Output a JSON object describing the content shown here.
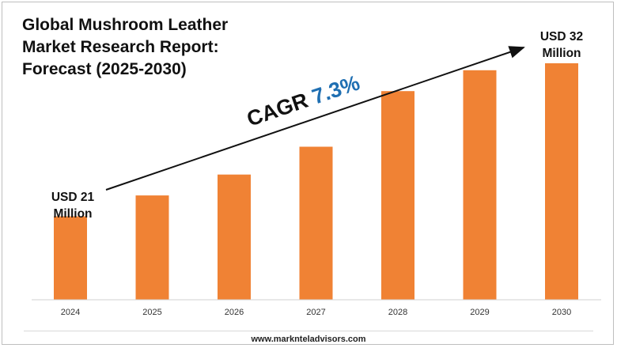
{
  "title": [
    "Global Mushroom Leather",
    "Market Research Report:",
    "Forecast (2025-2030)"
  ],
  "start_label": [
    "USD 21",
    "Million"
  ],
  "end_label": [
    "USD 32",
    "Million"
  ],
  "cagr": {
    "prefix": "CAGR ",
    "value": "7.3%"
  },
  "footer": "www.marknteladvisors.com",
  "colors": {
    "bar": "#f08234",
    "cagr_value": "#1f6fb2",
    "text": "#111111"
  },
  "chart_data": {
    "type": "bar",
    "categories": [
      "2024",
      "2025",
      "2026",
      "2027",
      "2028",
      "2029",
      "2030"
    ],
    "values": [
      21,
      22.5,
      24,
      26,
      30,
      31.5,
      32
    ],
    "title": "Global Mushroom Leather Market Research Report: Forecast (2025-2030)",
    "xlabel": "",
    "ylabel": "",
    "ylim": [
      15,
      32
    ],
    "unit": "USD Million",
    "grid": false,
    "legend": "none"
  }
}
